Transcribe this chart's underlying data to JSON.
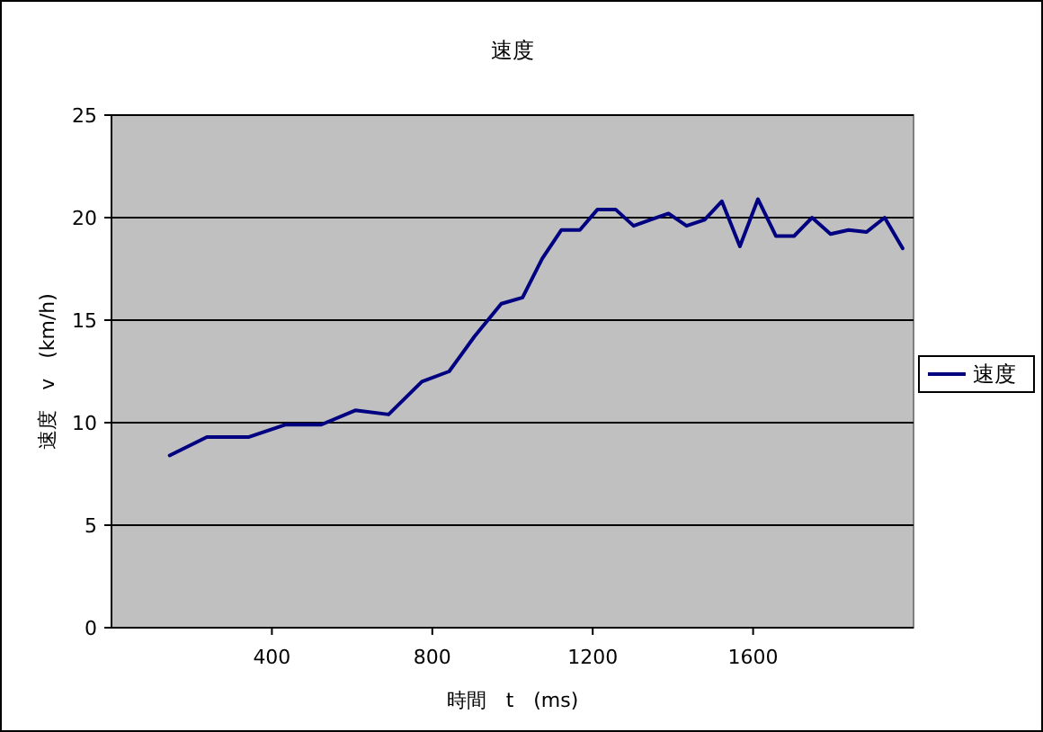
{
  "chart_data": {
    "type": "line",
    "title": "速度",
    "xlabel": "時間　t　(ms)",
    "ylabel": "速度　v　(km/h)",
    "xlim": [
      0,
      2000
    ],
    "xticks": [
      400,
      800,
      1200,
      1600
    ],
    "ylim": [
      0,
      25
    ],
    "yticks": [
      0,
      5,
      10,
      15,
      20,
      25
    ],
    "grid": "y",
    "legend": "right",
    "marker": "none",
    "line_style": "solid",
    "series": [
      {
        "name": "速度",
        "color": "#000080",
        "x": [
          145,
          238,
          343,
          433,
          523,
          608,
          691,
          774,
          842,
          905,
          972,
          1025,
          1074,
          1122,
          1168,
          1212,
          1257,
          1302,
          1344,
          1389,
          1434,
          1479,
          1522,
          1567,
          1612,
          1657,
          1702,
          1747,
          1793,
          1838,
          1883,
          1928,
          1973
        ],
        "values": [
          8.4,
          9.3,
          9.3,
          9.9,
          9.9,
          10.6,
          10.4,
          12.0,
          12.5,
          14.2,
          15.8,
          16.1,
          18.0,
          19.4,
          19.4,
          20.4,
          20.4,
          19.6,
          19.9,
          20.2,
          19.6,
          19.9,
          20.8,
          18.6,
          20.9,
          19.1,
          19.1,
          20.0,
          19.2,
          19.4,
          19.3,
          20.0,
          18.5
        ]
      }
    ]
  }
}
